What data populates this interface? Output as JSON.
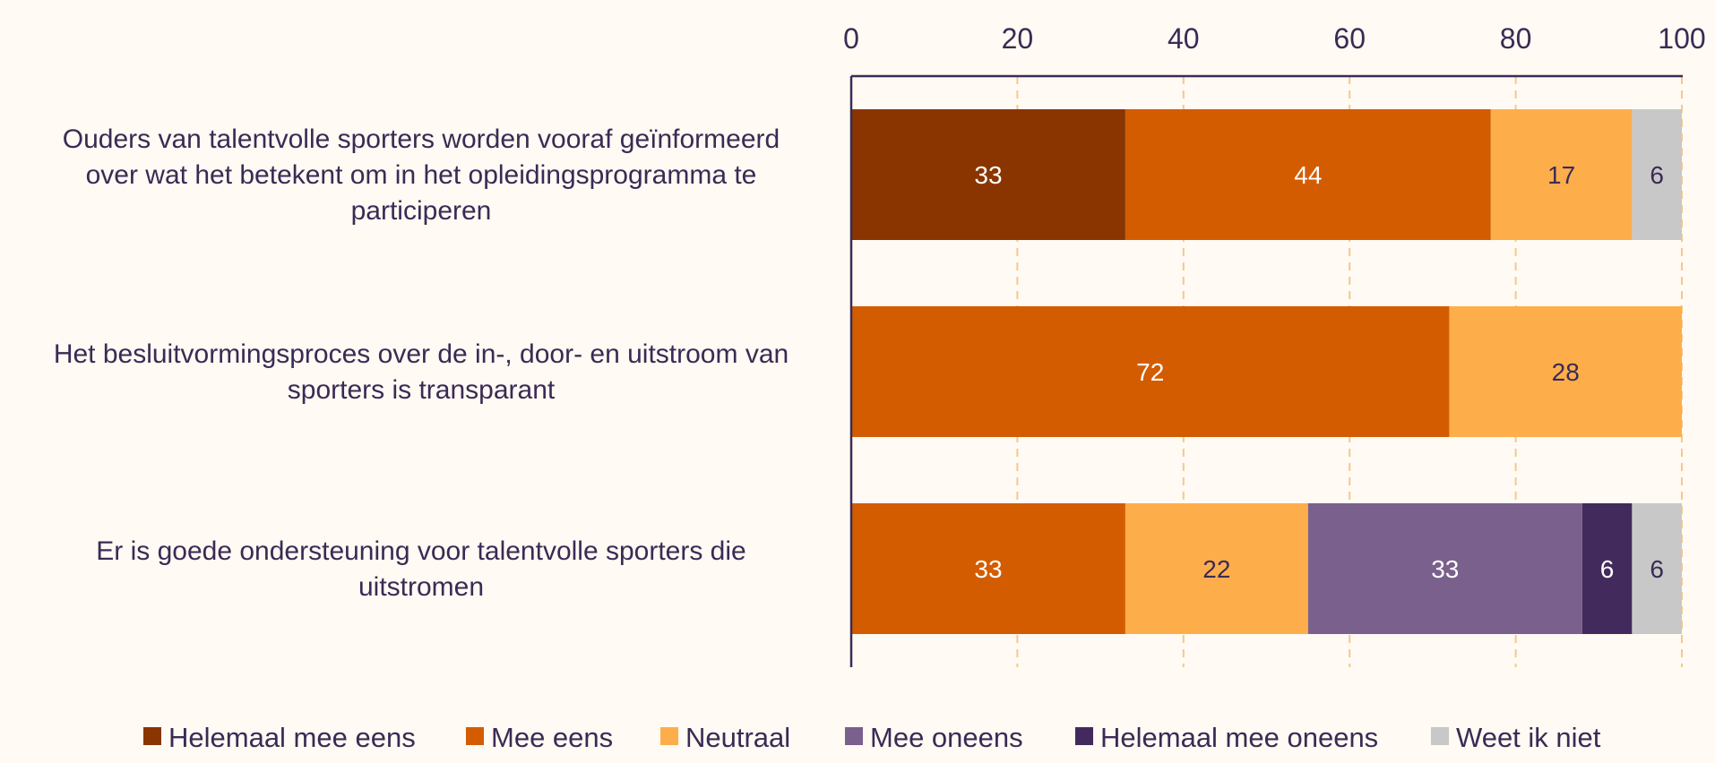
{
  "chart_data": {
    "type": "bar",
    "orientation": "horizontal",
    "stacked": true,
    "categories": [
      [
        "Ouders van talentvolle sporters worden vooraf geïnformeerd",
        "over wat het betekent om in het opleidingsprogramma te",
        "participeren"
      ],
      [
        "Het besluitvormingsproces over de in-, door- en uitstroom van",
        "sporters is transparant"
      ],
      [
        "Er is goede ondersteuning voor talentvolle sporters die",
        "uitstromen"
      ]
    ],
    "series": [
      {
        "name": "Helemaal mee eens",
        "color": "#8a3500",
        "label_color": "#ffffff",
        "values": [
          33,
          0,
          0
        ]
      },
      {
        "name": "Mee eens",
        "color": "#d35c00",
        "label_color": "#ffffff",
        "values": [
          44,
          72,
          33
        ]
      },
      {
        "name": "Neutraal",
        "color": "#fdae4b",
        "label_color": "#3b2a55",
        "values": [
          17,
          28,
          22
        ]
      },
      {
        "name": "Mee oneens",
        "color": "#7a608c",
        "label_color": "#ffffff",
        "values": [
          0,
          0,
          33
        ]
      },
      {
        "name": "Helemaal mee oneens",
        "color": "#432a5c",
        "label_color": "#ffffff",
        "values": [
          0,
          0,
          6
        ]
      },
      {
        "name": "Weet ik niet",
        "color": "#c8c8c8",
        "label_color": "#3b2a55",
        "values": [
          6,
          0,
          6
        ]
      }
    ],
    "x_ticks": [
      "0",
      "20",
      "40",
      "60",
      "80",
      "100"
    ],
    "xlim": [
      0,
      100
    ],
    "axis_position": "top",
    "grid": true,
    "legend_position": "bottom",
    "colors": {
      "axis": "#3b2a55",
      "grid": "#f5c98a",
      "background": "#fffaf3"
    }
  }
}
